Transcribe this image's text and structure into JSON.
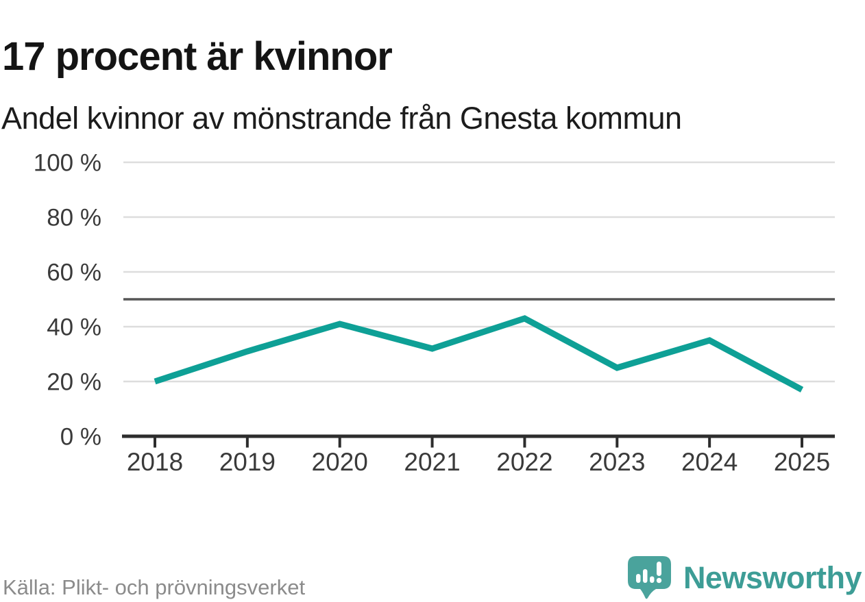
{
  "header": {
    "title": "17 procent är kvinnor",
    "subtitle": "Andel kvinnor av mönstrande från Gnesta kommun"
  },
  "chart_data": {
    "type": "line",
    "title": "17 procent är kvinnor",
    "subtitle": "Andel kvinnor av mönstrande från Gnesta kommun",
    "categories": [
      "2018",
      "2019",
      "2020",
      "2021",
      "2022",
      "2023",
      "2024",
      "2025"
    ],
    "series": [
      {
        "name": "Andel kvinnor av mönstrande",
        "values": [
          20,
          31,
          41,
          32,
          43,
          25,
          35,
          17
        ]
      }
    ],
    "unit": "%",
    "ylim": [
      0,
      100
    ],
    "y_ticks": [
      0,
      20,
      40,
      60,
      80,
      100
    ],
    "y_tick_labels": [
      "0 %",
      "20 %",
      "40 %",
      "60 %",
      "80 %",
      "100 %"
    ],
    "reference_line": 50,
    "grid": "horizontal",
    "legend": "none",
    "colors": {
      "line": "#0ea096",
      "reference_line": "#565656",
      "gridline": "#dddddd",
      "axis": "#2d2d2d",
      "tick_label": "#3a3a3a"
    }
  },
  "footer": {
    "source": "Källa: Plikt- och prövningsverket",
    "brand": "Newsworthy",
    "brand_color": "#3d9d96",
    "logo_icon": "speech-bubble-bar-chart-icon"
  }
}
